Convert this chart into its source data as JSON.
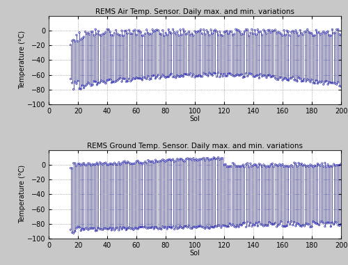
{
  "title_air": "REMS Air Temp. Sensor. Daily max. and min. variations",
  "title_ground": "REMS Ground Temp. Sensor. Daily max. and min. variations",
  "xlabel": "Sol",
  "ylabel": "Temperature (°C)",
  "xlim": [
    0,
    200
  ],
  "ylim": [
    -100,
    20
  ],
  "yticks": [
    0,
    -20,
    -40,
    -60,
    -80,
    -100
  ],
  "xticks": [
    0,
    20,
    40,
    60,
    80,
    100,
    120,
    140,
    160,
    180,
    200
  ],
  "line_color": "#2222aa",
  "marker_color": "#2222aa",
  "plot_bg_color": "#ffffff",
  "fig_bg": "#c8c8c8",
  "grid_color": "#888888",
  "seed": 42,
  "title_fontsize": 7.5,
  "label_fontsize": 7,
  "tick_fontsize": 7
}
